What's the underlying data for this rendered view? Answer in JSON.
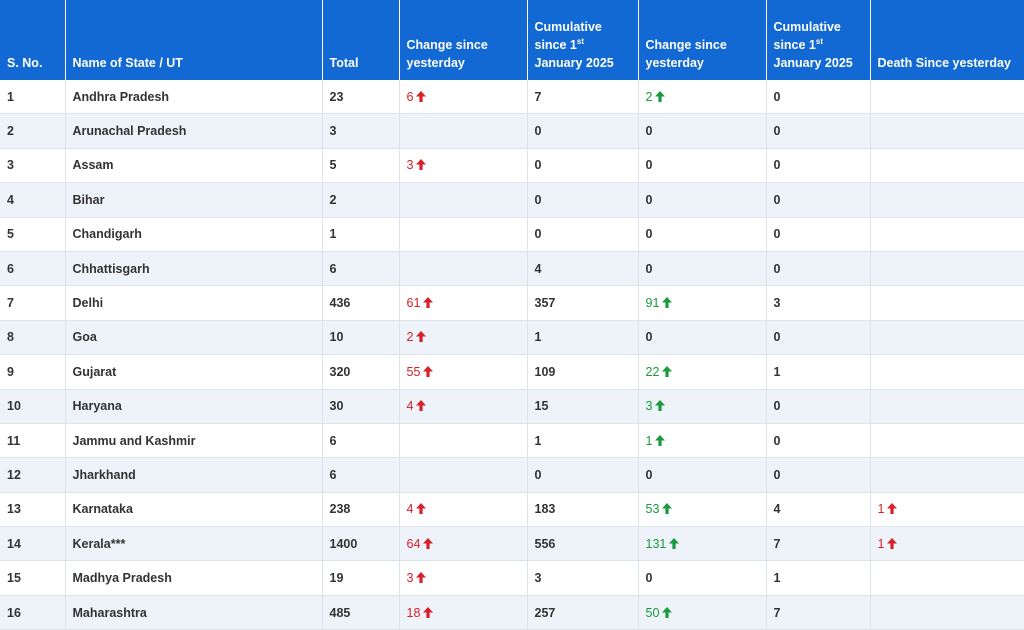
{
  "header": {
    "sno": "S. No.",
    "name": "Name of State / UT",
    "total": "Total",
    "change1": "Change since yesterday",
    "cum1_prefix": "Cumulative since 1",
    "cum1_sup": "st",
    "cum1_suffix": "January 2025",
    "change2": "Change since yesterday",
    "cum2_prefix": "Cumulative since 1",
    "cum2_sup": "st",
    "cum2_suffix": "January 2025",
    "death": "Death Since yesterday"
  },
  "colors": {
    "header_bg": "#1269d3",
    "increase_red": "#d6202a",
    "increase_green": "#1a9a3c"
  },
  "rows": [
    {
      "sno": "1",
      "name": "Andhra Pradesh",
      "total": "23",
      "change": "6",
      "cum": "7",
      "change2": "2",
      "cum2": "0",
      "death": ""
    },
    {
      "sno": "2",
      "name": "Arunachal Pradesh",
      "total": "3",
      "change": "",
      "cum": "0",
      "change2": "0",
      "cum2": "0",
      "death": ""
    },
    {
      "sno": "3",
      "name": "Assam",
      "total": "5",
      "change": "3",
      "cum": "0",
      "change2": "0",
      "cum2": "0",
      "death": ""
    },
    {
      "sno": "4",
      "name": "Bihar",
      "total": "2",
      "change": "",
      "cum": "0",
      "change2": "0",
      "cum2": "0",
      "death": ""
    },
    {
      "sno": "5",
      "name": "Chandigarh",
      "total": "1",
      "change": "",
      "cum": "0",
      "change2": "0",
      "cum2": "0",
      "death": ""
    },
    {
      "sno": "6",
      "name": "Chhattisgarh",
      "total": "6",
      "change": "",
      "cum": "4",
      "change2": "0",
      "cum2": "0",
      "death": ""
    },
    {
      "sno": "7",
      "name": "Delhi",
      "total": "436",
      "change": "61",
      "cum": "357",
      "change2": "91",
      "cum2": "3",
      "death": ""
    },
    {
      "sno": "8",
      "name": "Goa",
      "total": "10",
      "change": "2",
      "cum": "1",
      "change2": "0",
      "cum2": "0",
      "death": ""
    },
    {
      "sno": "9",
      "name": "Gujarat",
      "total": "320",
      "change": "55",
      "cum": "109",
      "change2": "22",
      "cum2": "1",
      "death": ""
    },
    {
      "sno": "10",
      "name": "Haryana",
      "total": "30",
      "change": "4",
      "cum": "15",
      "change2": "3",
      "cum2": "0",
      "death": ""
    },
    {
      "sno": "11",
      "name": "Jammu and Kashmir",
      "total": "6",
      "change": "",
      "cum": "1",
      "change2": "1",
      "cum2": "0",
      "death": ""
    },
    {
      "sno": "12",
      "name": "Jharkhand",
      "total": "6",
      "change": "",
      "cum": "0",
      "change2": "0",
      "cum2": "0",
      "death": ""
    },
    {
      "sno": "13",
      "name": "Karnataka",
      "total": "238",
      "change": "4",
      "cum": "183",
      "change2": "53",
      "cum2": "4",
      "death": "1"
    },
    {
      "sno": "14",
      "name": "Kerala***",
      "total": "1400",
      "change": "64",
      "cum": "556",
      "change2": "131",
      "cum2": "7",
      "death": "1"
    },
    {
      "sno": "15",
      "name": "Madhya Pradesh",
      "total": "19",
      "change": "3",
      "cum": "3",
      "change2": "0",
      "cum2": "1",
      "death": ""
    },
    {
      "sno": "16",
      "name": "Maharashtra",
      "total": "485",
      "change": "18",
      "cum": "257",
      "change2": "50",
      "cum2": "7",
      "death": ""
    }
  ]
}
